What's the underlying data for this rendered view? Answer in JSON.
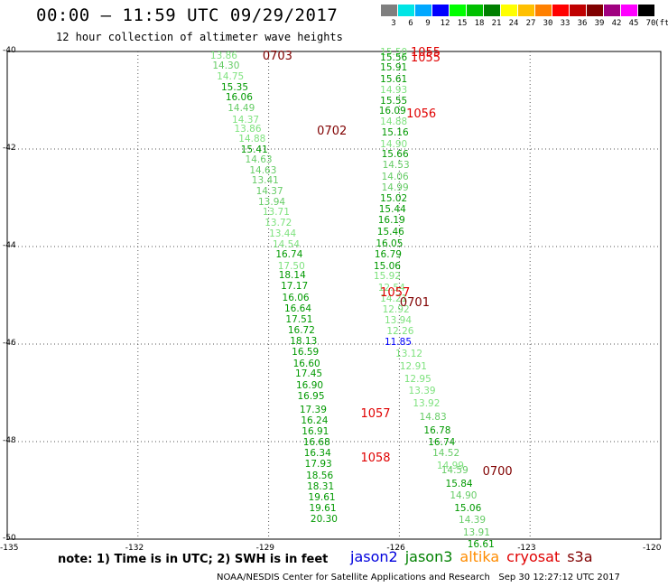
{
  "header": {
    "title": "00:00 – 11:59 UTC 09/29/2017",
    "subtitle": "12 hour collection of altimeter wave heights"
  },
  "scale": {
    "unit": "(ft)",
    "bins": [
      {
        "label": "3",
        "color": "#7f7f7f"
      },
      {
        "label": "6",
        "color": "#00e5e5"
      },
      {
        "label": "9",
        "color": "#00a8ff"
      },
      {
        "label": "12",
        "color": "#0000ff"
      },
      {
        "label": "15",
        "color": "#00ff00"
      },
      {
        "label": "18",
        "color": "#00c000"
      },
      {
        "label": "21",
        "color": "#008000"
      },
      {
        "label": "24",
        "color": "#ffff00"
      },
      {
        "label": "27",
        "color": "#ffc000"
      },
      {
        "label": "30",
        "color": "#ff8000"
      },
      {
        "label": "33",
        "color": "#ff0000"
      },
      {
        "label": "36",
        "color": "#c00000"
      },
      {
        "label": "39",
        "color": "#800000"
      },
      {
        "label": "42",
        "color": "#a00080"
      },
      {
        "label": "45",
        "color": "#ff00ff"
      },
      {
        "label": "70",
        "color": "#000000"
      }
    ]
  },
  "map": {
    "lat_ticks": [
      "-40",
      "-42",
      "-44",
      "-46",
      "-48",
      "-50"
    ],
    "lon_ticks": [
      "-135",
      "-132",
      "-129",
      "-126",
      "-123",
      "-120"
    ],
    "lat_range": [
      -50,
      -40
    ],
    "lon_range": [
      -135,
      -120
    ],
    "grid": "dotted"
  },
  "observations": [
    {
      "lon": -130.05,
      "lat": -40.08,
      "value": "13.86",
      "color": "#7ee27e"
    },
    {
      "lon": -130.0,
      "lat": -40.28,
      "value": "14.30",
      "color": "#66cc66"
    },
    {
      "lon": -129.9,
      "lat": -40.5,
      "value": "14.75",
      "color": "#7ee27e"
    },
    {
      "lon": -129.8,
      "lat": -40.72,
      "value": "15.35",
      "color": "#009900"
    },
    {
      "lon": -129.7,
      "lat": -40.93,
      "value": "16.06",
      "color": "#009900"
    },
    {
      "lon": -129.65,
      "lat": -41.15,
      "value": "14.49",
      "color": "#66cc66"
    },
    {
      "lon": -129.55,
      "lat": -41.38,
      "value": "14.37",
      "color": "#7ee27e"
    },
    {
      "lon": -129.5,
      "lat": -41.57,
      "value": "13.86",
      "color": "#7ee27e"
    },
    {
      "lon": -129.4,
      "lat": -41.78,
      "value": "14.88",
      "color": "#7ee27e"
    },
    {
      "lon": -129.35,
      "lat": -42.0,
      "value": "15.41",
      "color": "#009900"
    },
    {
      "lon": -129.25,
      "lat": -42.2,
      "value": "14.63",
      "color": "#66cc66"
    },
    {
      "lon": -129.15,
      "lat": -42.42,
      "value": "14.63",
      "color": "#66cc66"
    },
    {
      "lon": -129.1,
      "lat": -42.63,
      "value": "13.41",
      "color": "#66cc66"
    },
    {
      "lon": -129.0,
      "lat": -42.85,
      "value": "14.37",
      "color": "#66cc66"
    },
    {
      "lon": -128.95,
      "lat": -43.07,
      "value": "13.94",
      "color": "#66cc66"
    },
    {
      "lon": -128.85,
      "lat": -43.28,
      "value": "13.71",
      "color": "#7ee27e"
    },
    {
      "lon": -128.8,
      "lat": -43.5,
      "value": "13.72",
      "color": "#7ee27e"
    },
    {
      "lon": -128.7,
      "lat": -43.72,
      "value": "13.44",
      "color": "#7ee27e"
    },
    {
      "lon": -128.62,
      "lat": -43.95,
      "value": "14.54",
      "color": "#7ee27e"
    },
    {
      "lon": -128.55,
      "lat": -44.15,
      "value": "16.74",
      "color": "#009900"
    },
    {
      "lon": -128.5,
      "lat": -44.38,
      "value": "17.50",
      "color": "#7ee27e"
    },
    {
      "lon": -128.48,
      "lat": -44.58,
      "value": "18.14",
      "color": "#009900"
    },
    {
      "lon": -128.43,
      "lat": -44.8,
      "value": "17.17",
      "color": "#009900"
    },
    {
      "lon": -128.4,
      "lat": -45.03,
      "value": "16.06",
      "color": "#009900"
    },
    {
      "lon": -128.35,
      "lat": -45.25,
      "value": "16.64",
      "color": "#009900"
    },
    {
      "lon": -128.32,
      "lat": -45.48,
      "value": "17.51",
      "color": "#009900"
    },
    {
      "lon": -128.27,
      "lat": -45.7,
      "value": "16.72",
      "color": "#009900"
    },
    {
      "lon": -128.22,
      "lat": -45.93,
      "value": "18.13",
      "color": "#009900"
    },
    {
      "lon": -128.18,
      "lat": -46.15,
      "value": "16.59",
      "color": "#009900"
    },
    {
      "lon": -128.15,
      "lat": -46.38,
      "value": "16.60",
      "color": "#009900"
    },
    {
      "lon": -128.1,
      "lat": -46.6,
      "value": "17.45",
      "color": "#009900"
    },
    {
      "lon": -128.08,
      "lat": -46.83,
      "value": "16.90",
      "color": "#009900"
    },
    {
      "lon": -128.05,
      "lat": -47.05,
      "value": "16.95",
      "color": "#009900"
    },
    {
      "lon": -128.0,
      "lat": -47.33,
      "value": "17.39",
      "color": "#009900"
    },
    {
      "lon": -127.97,
      "lat": -47.55,
      "value": "16.24",
      "color": "#009900"
    },
    {
      "lon": -127.95,
      "lat": -47.78,
      "value": "16.91",
      "color": "#009900"
    },
    {
      "lon": -127.92,
      "lat": -48.0,
      "value": "16.68",
      "color": "#009900"
    },
    {
      "lon": -127.9,
      "lat": -48.23,
      "value": "16.34",
      "color": "#009900"
    },
    {
      "lon": -127.88,
      "lat": -48.45,
      "value": "17.93",
      "color": "#009900"
    },
    {
      "lon": -127.85,
      "lat": -48.68,
      "value": "18.56",
      "color": "#009900"
    },
    {
      "lon": -127.83,
      "lat": -48.9,
      "value": "18.31",
      "color": "#009900"
    },
    {
      "lon": -127.8,
      "lat": -49.13,
      "value": "19.61",
      "color": "#009900"
    },
    {
      "lon": -127.78,
      "lat": -49.35,
      "value": "19.61",
      "color": "#009900"
    },
    {
      "lon": -127.75,
      "lat": -49.58,
      "value": "20.30",
      "color": "#009900"
    },
    {
      "lon": -126.15,
      "lat": -40.0,
      "value": "15.50",
      "color": "#7ee27e"
    },
    {
      "lon": -126.15,
      "lat": -40.12,
      "value": "15.56",
      "color": "#009900"
    },
    {
      "lon": -126.15,
      "lat": -40.32,
      "value": "15.91",
      "color": "#009900"
    },
    {
      "lon": -126.15,
      "lat": -40.55,
      "value": "15.61",
      "color": "#009900"
    },
    {
      "lon": -126.15,
      "lat": -40.78,
      "value": "14.93",
      "color": "#7ee27e"
    },
    {
      "lon": -126.15,
      "lat": -41.0,
      "value": "15.55",
      "color": "#009900"
    },
    {
      "lon": -126.18,
      "lat": -41.2,
      "value": "16.09",
      "color": "#009900"
    },
    {
      "lon": -126.15,
      "lat": -41.42,
      "value": "14.88",
      "color": "#7ee27e"
    },
    {
      "lon": -126.12,
      "lat": -41.65,
      "value": "15.16",
      "color": "#009900"
    },
    {
      "lon": -126.15,
      "lat": -41.88,
      "value": "14.90",
      "color": "#7ee27e"
    },
    {
      "lon": -126.12,
      "lat": -42.1,
      "value": "15.66",
      "color": "#009900"
    },
    {
      "lon": -126.1,
      "lat": -42.32,
      "value": "14.53",
      "color": "#66cc66"
    },
    {
      "lon": -126.12,
      "lat": -42.55,
      "value": "14.06",
      "color": "#66cc66"
    },
    {
      "lon": -126.12,
      "lat": -42.78,
      "value": "14.99",
      "color": "#66cc66"
    },
    {
      "lon": -126.15,
      "lat": -43.0,
      "value": "15.02",
      "color": "#009900"
    },
    {
      "lon": -126.18,
      "lat": -43.22,
      "value": "15.44",
      "color": "#009900"
    },
    {
      "lon": -126.2,
      "lat": -43.45,
      "value": "16.19",
      "color": "#009900"
    },
    {
      "lon": -126.22,
      "lat": -43.68,
      "value": "15.46",
      "color": "#009900"
    },
    {
      "lon": -126.25,
      "lat": -43.92,
      "value": "16.05",
      "color": "#009900"
    },
    {
      "lon": -126.28,
      "lat": -44.15,
      "value": "16.79",
      "color": "#009900"
    },
    {
      "lon": -126.3,
      "lat": -44.38,
      "value": "15.06",
      "color": "#009900"
    },
    {
      "lon": -126.3,
      "lat": -44.6,
      "value": "15.92",
      "color": "#7ee27e"
    },
    {
      "lon": -126.2,
      "lat": -44.83,
      "value": "12.54",
      "color": "#7ee27e"
    },
    {
      "lon": -126.15,
      "lat": -45.05,
      "value": "14.21",
      "color": "#7ee27e"
    },
    {
      "lon": -126.1,
      "lat": -45.28,
      "value": "12.92",
      "color": "#7ee27e"
    },
    {
      "lon": -126.05,
      "lat": -45.5,
      "value": "13.94",
      "color": "#7ee27e"
    },
    {
      "lon": -126.0,
      "lat": -45.72,
      "value": "12.26",
      "color": "#7ee27e"
    },
    {
      "lon": -126.05,
      "lat": -45.95,
      "value": "11.85",
      "color": "#0000ff"
    },
    {
      "lon": -125.8,
      "lat": -46.18,
      "value": "13.12",
      "color": "#7ee27e"
    },
    {
      "lon": -125.7,
      "lat": -46.45,
      "value": "12.91",
      "color": "#7ee27e"
    },
    {
      "lon": -125.6,
      "lat": -46.7,
      "value": "12.95",
      "color": "#7ee27e"
    },
    {
      "lon": -125.5,
      "lat": -46.95,
      "value": "13.39",
      "color": "#7ee27e"
    },
    {
      "lon": -125.4,
      "lat": -47.2,
      "value": "13.92",
      "color": "#7ee27e"
    },
    {
      "lon": -125.25,
      "lat": -47.48,
      "value": "14.83",
      "color": "#66cc66"
    },
    {
      "lon": -125.15,
      "lat": -47.75,
      "value": "16.78",
      "color": "#009900"
    },
    {
      "lon": -125.05,
      "lat": -48.0,
      "value": "16.74",
      "color": "#009900"
    },
    {
      "lon": -124.95,
      "lat": -48.22,
      "value": "14.52",
      "color": "#66cc66"
    },
    {
      "lon": -124.85,
      "lat": -48.48,
      "value": "14.99",
      "color": "#7ee27e"
    },
    {
      "lon": -124.75,
      "lat": -48.58,
      "value": "14.59",
      "color": "#66cc66"
    },
    {
      "lon": -124.65,
      "lat": -48.85,
      "value": "15.84",
      "color": "#009900"
    },
    {
      "lon": -124.55,
      "lat": -49.1,
      "value": "14.90",
      "color": "#66cc66"
    },
    {
      "lon": -124.45,
      "lat": -49.35,
      "value": "15.06",
      "color": "#009900"
    },
    {
      "lon": -124.35,
      "lat": -49.6,
      "value": "14.39",
      "color": "#66cc66"
    },
    {
      "lon": -124.25,
      "lat": -49.85,
      "value": "13.91",
      "color": "#66cc66"
    },
    {
      "lon": -124.15,
      "lat": -50.1,
      "value": "16.61",
      "color": "#009900"
    }
  ],
  "time_labels": [
    {
      "lon": -128.85,
      "lat": -40.08,
      "text": "0703",
      "color": "#800000"
    },
    {
      "lon": -125.45,
      "lat": -40.0,
      "text": "1055",
      "color": "#e00000"
    },
    {
      "lon": -125.45,
      "lat": -40.12,
      "text": "1055",
      "color": "#e00000"
    },
    {
      "lon": -125.55,
      "lat": -41.25,
      "text": "1056",
      "color": "#e00000"
    },
    {
      "lon": -127.6,
      "lat": -41.62,
      "text": "0702",
      "color": "#800000"
    },
    {
      "lon": -126.15,
      "lat": -44.92,
      "text": "1057",
      "color": "#e00000"
    },
    {
      "lon": -125.7,
      "lat": -45.13,
      "text": "0701",
      "color": "#800000"
    },
    {
      "lon": -126.6,
      "lat": -47.4,
      "text": "1057",
      "color": "#e00000"
    },
    {
      "lon": -126.6,
      "lat": -48.32,
      "text": "1058",
      "color": "#e00000"
    },
    {
      "lon": -123.8,
      "lat": -48.6,
      "text": "0700",
      "color": "#800000"
    }
  ],
  "note": "note: 1) Time is in UTC; 2) SWH is in feet",
  "legend": [
    {
      "name": "jason2",
      "color": "#0000dd"
    },
    {
      "name": "jason3",
      "color": "#008000"
    },
    {
      "name": "altika",
      "color": "#ff8c00"
    },
    {
      "name": "cryosat",
      "color": "#e00000"
    },
    {
      "name": "s3a",
      "color": "#800000"
    }
  ],
  "footer": "NOAA/NESDIS Center for Satellite Applications and Research   Sep 30 12:27:12 UTC 2017"
}
